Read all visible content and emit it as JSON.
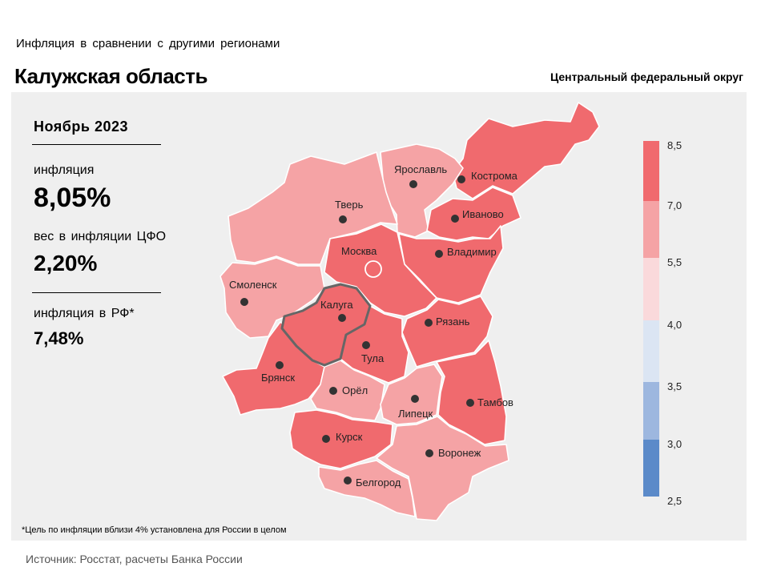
{
  "header": {
    "supertitle": "Инфляция  в сравнении  с другими  регионами",
    "title": "Калужская область",
    "district": "Центральный федеральный округ"
  },
  "stats": {
    "period": "Ноябрь 2023",
    "inflation_label": "инфляция",
    "inflation_value": "8,05%",
    "weight_label": "вес в инфляции  ЦФО",
    "weight_value": "2,20%",
    "russia_label": "инфляция  в РФ*",
    "russia_value": "7,48%"
  },
  "footnote": "*Цель по инфляции вблизи 4% установлена для России в целом",
  "source": "Источник: Росстат, расчеты Банка России",
  "colors": {
    "high": "#f06a6e",
    "mid": "#f5a3a5",
    "low": "#fad9db",
    "target": "#dbe5f3",
    "blue_light": "#9db7df",
    "blue_dark": "#5b8ac9",
    "highlight_border": "#666666"
  },
  "legend": {
    "ticks": [
      "8,5",
      "7,0",
      "5,5",
      "4,0",
      "3,5",
      "3,0",
      "2,5"
    ],
    "bins": [
      {
        "from": 7.0,
        "to": 8.5,
        "color": "#f06a6e"
      },
      {
        "from": 5.5,
        "to": 7.0,
        "color": "#f5a3a5"
      },
      {
        "from": 4.0,
        "to": 5.5,
        "color": "#fad9db"
      },
      {
        "from": 3.5,
        "to": 4.0,
        "color": "#dbe5f3"
      },
      {
        "from": 3.0,
        "to": 3.5,
        "color": "#9db7df"
      },
      {
        "from": 2.5,
        "to": 3.0,
        "color": "#5b8ac9"
      }
    ]
  },
  "regions": [
    {
      "name": "Кострома",
      "category": "high"
    },
    {
      "name": "Ярославль",
      "category": "mid"
    },
    {
      "name": "Тверь",
      "category": "mid"
    },
    {
      "name": "Иваново",
      "category": "high"
    },
    {
      "name": "Владимир",
      "category": "high"
    },
    {
      "name": "Москва",
      "category": "high",
      "capital": true
    },
    {
      "name": "Смоленск",
      "category": "mid"
    },
    {
      "name": "Калуга",
      "category": "high",
      "highlighted": true
    },
    {
      "name": "Рязань",
      "category": "high"
    },
    {
      "name": "Тула",
      "category": "high"
    },
    {
      "name": "Брянск",
      "category": "high"
    },
    {
      "name": "Орёл",
      "category": "mid"
    },
    {
      "name": "Липецк",
      "category": "mid"
    },
    {
      "name": "Тамбов",
      "category": "high"
    },
    {
      "name": "Курск",
      "category": "high"
    },
    {
      "name": "Воронеж",
      "category": "mid"
    },
    {
      "name": "Белгород",
      "category": "mid"
    }
  ]
}
